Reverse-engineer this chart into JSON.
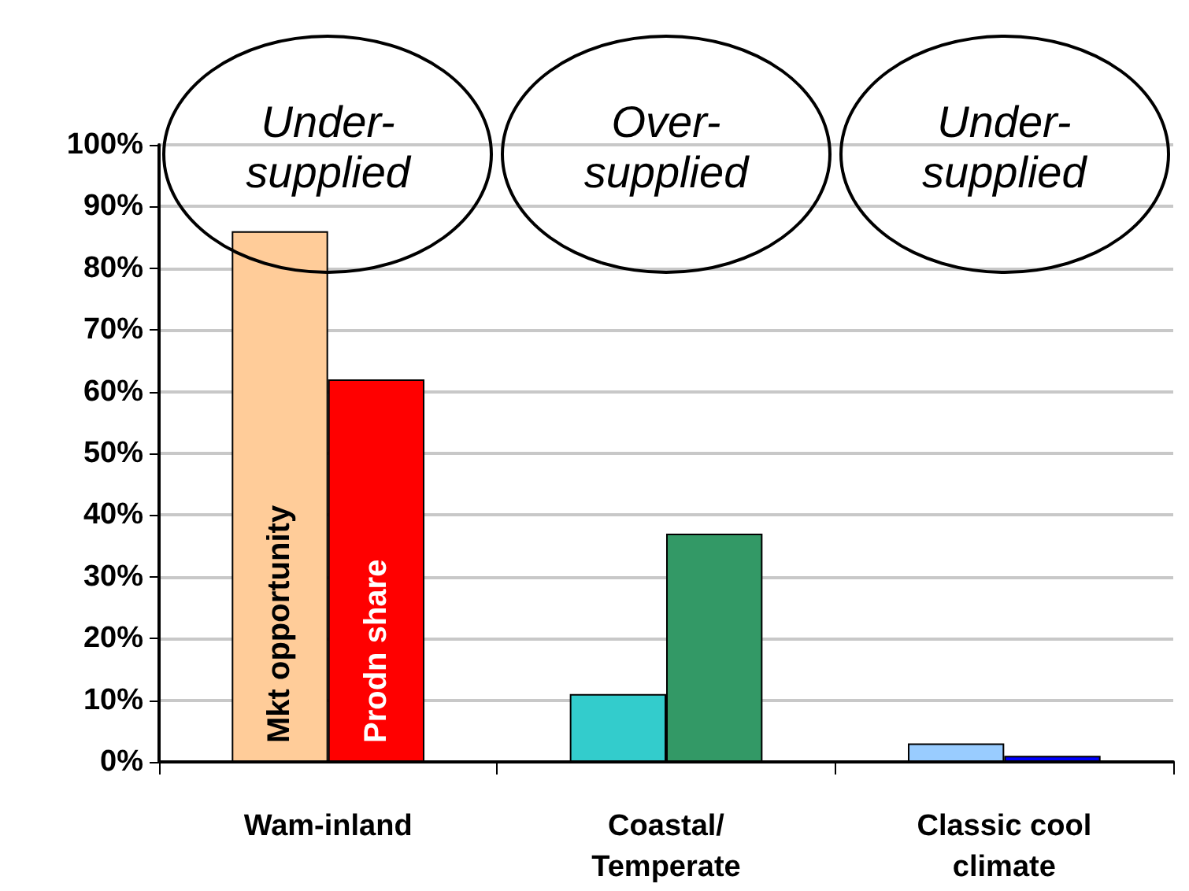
{
  "chart_data": {
    "type": "bar",
    "categories": [
      "Wam-inland",
      "Coastal/\nTemperate",
      "Classic cool\nclimate"
    ],
    "series": [
      {
        "name": "Mkt opportunity",
        "colors": [
          "#ffcc99",
          "#33cccc",
          "#99ccff"
        ],
        "values": [
          86,
          11,
          3
        ]
      },
      {
        "name": "Prodn share",
        "colors": [
          "#ff0000",
          "#339966",
          "#0000ff"
        ],
        "values": [
          62,
          37,
          1
        ]
      }
    ],
    "ylim": [
      0,
      100
    ],
    "yticks": [
      {
        "value": 0,
        "label": "0%"
      },
      {
        "value": 10,
        "label": "10%"
      },
      {
        "value": 20,
        "label": "20%"
      },
      {
        "value": 30,
        "label": "30%"
      },
      {
        "value": 40,
        "label": "40%"
      },
      {
        "value": 50,
        "label": "50%"
      },
      {
        "value": 60,
        "label": "60%"
      },
      {
        "value": 70,
        "label": "70%"
      },
      {
        "value": 80,
        "label": "80%"
      },
      {
        "value": 90,
        "label": "90%"
      },
      {
        "value": 100,
        "label": "100%"
      }
    ],
    "grid": "y",
    "annotations": [
      "Under-\nsupplied",
      "Over-\nsupplied",
      "Under-\nsupplied"
    ]
  }
}
